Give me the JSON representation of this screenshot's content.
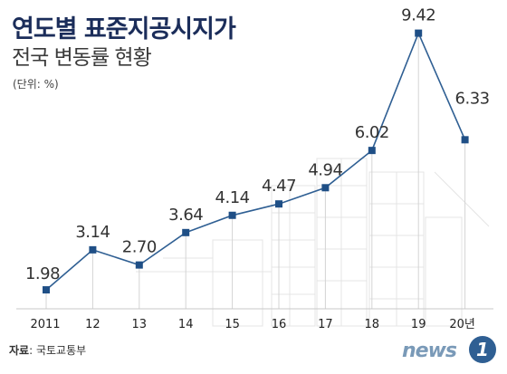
{
  "title": "연도별 표준지공시지가",
  "subtitle": "전국 변동률 현황",
  "unit_label": "(단위: %)",
  "source_label": "자료",
  "source_text": ": 국토교통부",
  "logo": {
    "text": "news",
    "badge": "1"
  },
  "colors": {
    "line": "#2f5f93",
    "marker": "#1f4f86",
    "title": "#1b2d5a"
  },
  "chart_data": {
    "type": "line",
    "title": "연도별 표준지공시지가 전국 변동률 현황",
    "ylabel": "",
    "xlabel": "",
    "unit": "%",
    "categories": [
      "2011",
      "12",
      "13",
      "14",
      "15",
      "16",
      "17",
      "18",
      "19",
      "20년"
    ],
    "series": [
      {
        "values": [
          1.98,
          3.14,
          2.7,
          3.64,
          4.14,
          4.47,
          4.94,
          6.02,
          9.42,
          6.33
        ]
      }
    ],
    "value_labels": [
      "1.98",
      "3.14",
      "2.70",
      "3.64",
      "4.14",
      "4.47",
      "4.94",
      "6.02",
      "9.42",
      "6.33"
    ],
    "grid": false,
    "legend": "none"
  }
}
